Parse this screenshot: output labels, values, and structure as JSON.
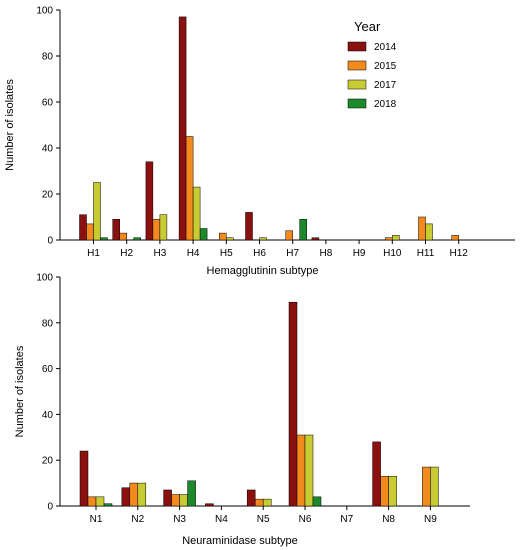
{
  "chart_data": [
    {
      "type": "bar",
      "xlabel": "Hemagglutinin subtype",
      "ylabel": "Number of isolates",
      "categories": [
        "H1",
        "H2",
        "H3",
        "H4",
        "H5",
        "H6",
        "H7",
        "H8",
        "H9",
        "H10",
        "H11",
        "H12"
      ],
      "ylim": [
        0,
        100
      ],
      "yticks": [
        0,
        20,
        40,
        60,
        80,
        100
      ],
      "series": [
        {
          "name": "2014",
          "values": [
            11,
            9,
            34,
            97,
            0,
            12,
            0,
            1,
            0,
            0,
            0,
            0
          ]
        },
        {
          "name": "2015",
          "values": [
            7,
            3,
            9,
            45,
            3,
            0,
            4,
            0,
            0,
            1,
            10,
            2
          ]
        },
        {
          "name": "2017",
          "values": [
            25,
            0,
            11,
            23,
            1,
            1,
            0,
            0,
            0,
            2,
            7,
            0
          ]
        },
        {
          "name": "2018",
          "values": [
            1,
            1,
            0,
            5,
            0,
            0,
            9,
            0,
            0,
            0,
            0,
            0
          ]
        }
      ],
      "legend": {
        "title": "Year",
        "placement": "top-right"
      },
      "grid": false
    },
    {
      "type": "bar",
      "xlabel": "Neuraminidase subtype",
      "ylabel": "Number of isolates",
      "categories": [
        "N1",
        "N2",
        "N3",
        "N4",
        "N5",
        "N6",
        "N7",
        "N8",
        "N9"
      ],
      "ylim": [
        0,
        100
      ],
      "yticks": [
        0,
        20,
        40,
        60,
        80,
        100
      ],
      "series": [
        {
          "name": "2014",
          "values": [
            24,
            8,
            7,
            1,
            7,
            89,
            0,
            28,
            0
          ]
        },
        {
          "name": "2015",
          "values": [
            4,
            10,
            5,
            0,
            3,
            31,
            0,
            13,
            17
          ]
        },
        {
          "name": "2017",
          "values": [
            4,
            10,
            5,
            0,
            3,
            31,
            0,
            13,
            17
          ]
        },
        {
          "name": "2018",
          "values": [
            1,
            0,
            11,
            0,
            0,
            4,
            0,
            0,
            0
          ]
        }
      ],
      "grid": false
    }
  ],
  "colors": {
    "2014": "#8b1010",
    "2015": "#f28a1e",
    "2017": "#c8cc32",
    "2018": "#1c8a2a"
  }
}
